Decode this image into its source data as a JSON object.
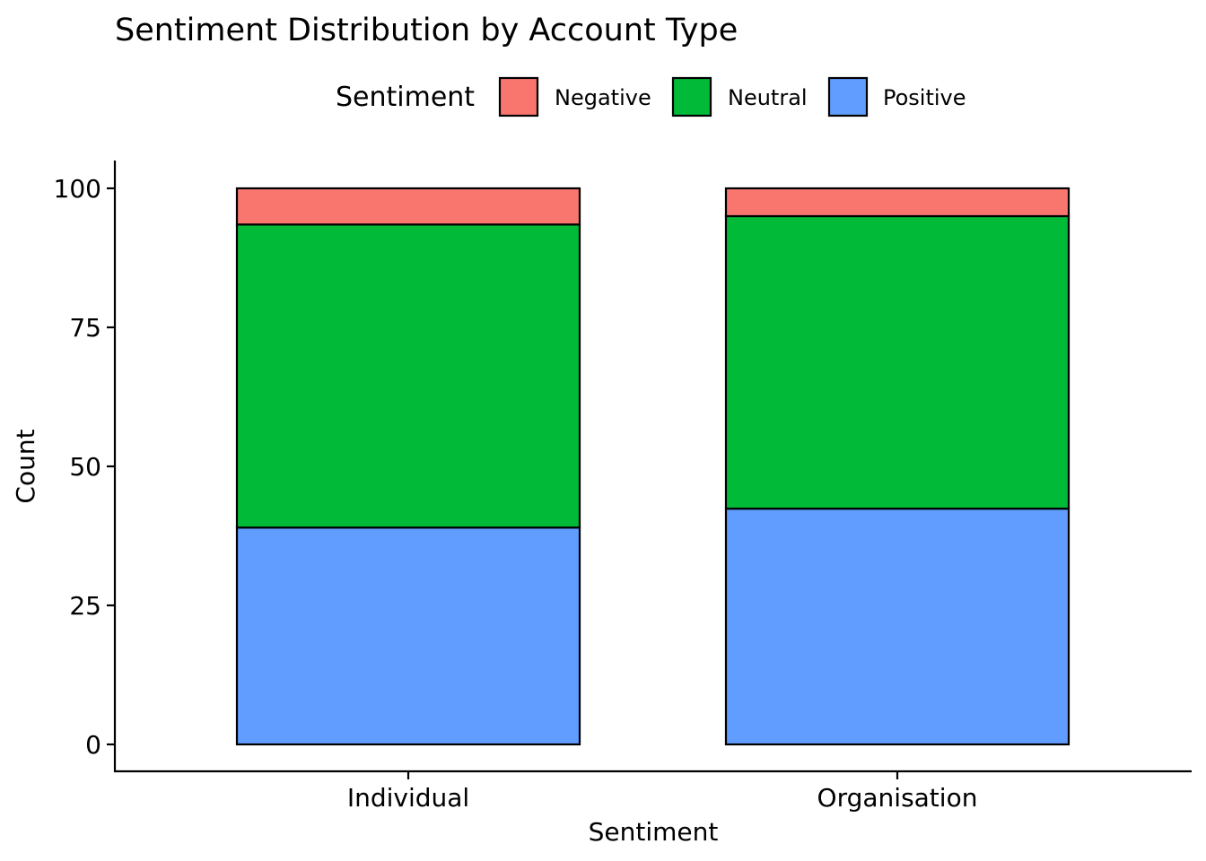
{
  "chart_data": {
    "type": "bar",
    "stacked": true,
    "title": "Sentiment Distribution by Account Type",
    "xlabel": "Sentiment",
    "ylabel": "Count",
    "categories": [
      "Individual",
      "Organisation"
    ],
    "ylim": [
      0,
      100
    ],
    "yticks": [
      0,
      25,
      50,
      75,
      100
    ],
    "grid": false,
    "legend": {
      "title": "Sentiment",
      "position": "top"
    },
    "series": [
      {
        "name": "Positive",
        "color": "#619CFF",
        "values": [
          39,
          42.4
        ]
      },
      {
        "name": "Neutral",
        "color": "#00BA38",
        "values": [
          54.5,
          52.6
        ]
      },
      {
        "name": "Negative",
        "color": "#F8766D",
        "values": [
          6.5,
          5
        ]
      }
    ],
    "legend_order": [
      "Negative",
      "Neutral",
      "Positive"
    ]
  }
}
